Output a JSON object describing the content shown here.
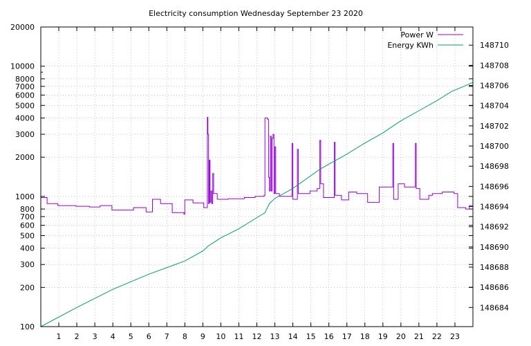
{
  "chart_data": {
    "type": "line",
    "title": "Electricity consumption Wednesday September 23 2020",
    "xlabel": "",
    "ylabel": "",
    "y2label": "",
    "x_axis": {
      "range": [
        0,
        24
      ],
      "ticks": [
        "1",
        "2",
        "3",
        "4",
        "5",
        "6",
        "7",
        "8",
        "9",
        "10",
        "11",
        "12",
        "13",
        "14",
        "15",
        "16",
        "17",
        "18",
        "19",
        "20",
        "21",
        "22",
        "23"
      ]
    },
    "y_axis": {
      "scale": "log",
      "range": [
        100,
        20000
      ],
      "ticks": [
        "100",
        "200",
        "300",
        "400",
        "500",
        "600",
        "700",
        "800",
        "1000",
        "2000",
        "3000",
        "4000",
        "5000",
        "6000",
        "7000",
        "8000",
        "10000",
        "20000"
      ]
    },
    "y2_axis": {
      "scale": "linear",
      "range": [
        148682.1,
        148711.8
      ],
      "ticks": [
        "148684",
        "148686",
        "148688",
        "148690",
        "148692",
        "148694",
        "148696",
        "148698",
        "148700",
        "148702",
        "148704",
        "148706",
        "148708",
        "148710"
      ]
    },
    "grid": true,
    "legend_position": "top-right",
    "series": [
      {
        "name": "Power W",
        "axis": "y",
        "color": "#9400d3",
        "shape": "step",
        "points": [
          [
            0.0,
            980
          ],
          [
            0.35,
            880
          ],
          [
            0.95,
            850
          ],
          [
            1.95,
            840
          ],
          [
            2.7,
            830
          ],
          [
            3.3,
            850
          ],
          [
            3.95,
            785
          ],
          [
            5.15,
            820
          ],
          [
            5.85,
            760
          ],
          [
            6.2,
            950
          ],
          [
            6.55,
            950
          ],
          [
            6.65,
            880
          ],
          [
            7.3,
            750
          ],
          [
            7.95,
            730
          ],
          [
            8.0,
            940
          ],
          [
            8.45,
            890
          ],
          [
            9.05,
            820
          ],
          [
            9.25,
            4050
          ],
          [
            9.28,
            3000
          ],
          [
            9.32,
            880
          ],
          [
            9.36,
            1900
          ],
          [
            9.4,
            900
          ],
          [
            9.45,
            1100
          ],
          [
            9.5,
            880
          ],
          [
            9.55,
            1500
          ],
          [
            9.6,
            1050
          ],
          [
            9.8,
            950
          ],
          [
            10.4,
            960
          ],
          [
            11.3,
            980
          ],
          [
            11.9,
            1000
          ],
          [
            12.4,
            1020
          ],
          [
            12.45,
            4000
          ],
          [
            12.6,
            3900
          ],
          [
            12.65,
            1400
          ],
          [
            12.7,
            1100
          ],
          [
            12.75,
            2900
          ],
          [
            12.8,
            1100
          ],
          [
            12.85,
            2800
          ],
          [
            12.9,
            3000
          ],
          [
            12.95,
            1050
          ],
          [
            13.0,
            2400
          ],
          [
            13.05,
            1050
          ],
          [
            13.25,
            1000
          ],
          [
            13.95,
            2550
          ],
          [
            14.0,
            950
          ],
          [
            14.25,
            2300
          ],
          [
            14.3,
            1050
          ],
          [
            14.95,
            1100
          ],
          [
            15.35,
            1150
          ],
          [
            15.5,
            2700
          ],
          [
            15.55,
            1250
          ],
          [
            15.7,
            980
          ],
          [
            16.3,
            2600
          ],
          [
            16.35,
            1020
          ],
          [
            16.7,
            940
          ],
          [
            17.1,
            1080
          ],
          [
            17.55,
            1050
          ],
          [
            18.15,
            900
          ],
          [
            18.8,
            1180
          ],
          [
            19.55,
            2550
          ],
          [
            19.6,
            950
          ],
          [
            19.85,
            1250
          ],
          [
            20.2,
            1180
          ],
          [
            20.8,
            2550
          ],
          [
            20.85,
            1150
          ],
          [
            21.05,
            950
          ],
          [
            21.55,
            1020
          ],
          [
            21.75,
            1050
          ],
          [
            22.3,
            1080
          ],
          [
            22.95,
            1050
          ],
          [
            23.15,
            820
          ],
          [
            23.6,
            800
          ],
          [
            23.8,
            850
          ],
          [
            23.95,
            850
          ]
        ]
      },
      {
        "name": "Energy KWh",
        "axis": "y2",
        "color": "#009e73",
        "shape": "line",
        "points": [
          [
            0.0,
            148682.1
          ],
          [
            2.0,
            148684.0
          ],
          [
            4.0,
            148685.8
          ],
          [
            6.0,
            148687.3
          ],
          [
            8.0,
            148688.6
          ],
          [
            9.0,
            148689.6
          ],
          [
            9.3,
            148690.1
          ],
          [
            10.0,
            148690.9
          ],
          [
            11.0,
            148691.8
          ],
          [
            12.0,
            148692.9
          ],
          [
            12.45,
            148693.4
          ],
          [
            12.7,
            148694.3
          ],
          [
            13.0,
            148694.8
          ],
          [
            13.5,
            148695.3
          ],
          [
            14.0,
            148695.8
          ],
          [
            15.5,
            148697.7
          ],
          [
            17.0,
            148699.2
          ],
          [
            18.0,
            148700.3
          ],
          [
            19.0,
            148701.3
          ],
          [
            20.0,
            148702.5
          ],
          [
            21.0,
            148703.5
          ],
          [
            22.0,
            148704.5
          ],
          [
            22.8,
            148705.4
          ],
          [
            23.6,
            148706.0
          ],
          [
            24.0,
            148706.3
          ]
        ]
      }
    ]
  }
}
